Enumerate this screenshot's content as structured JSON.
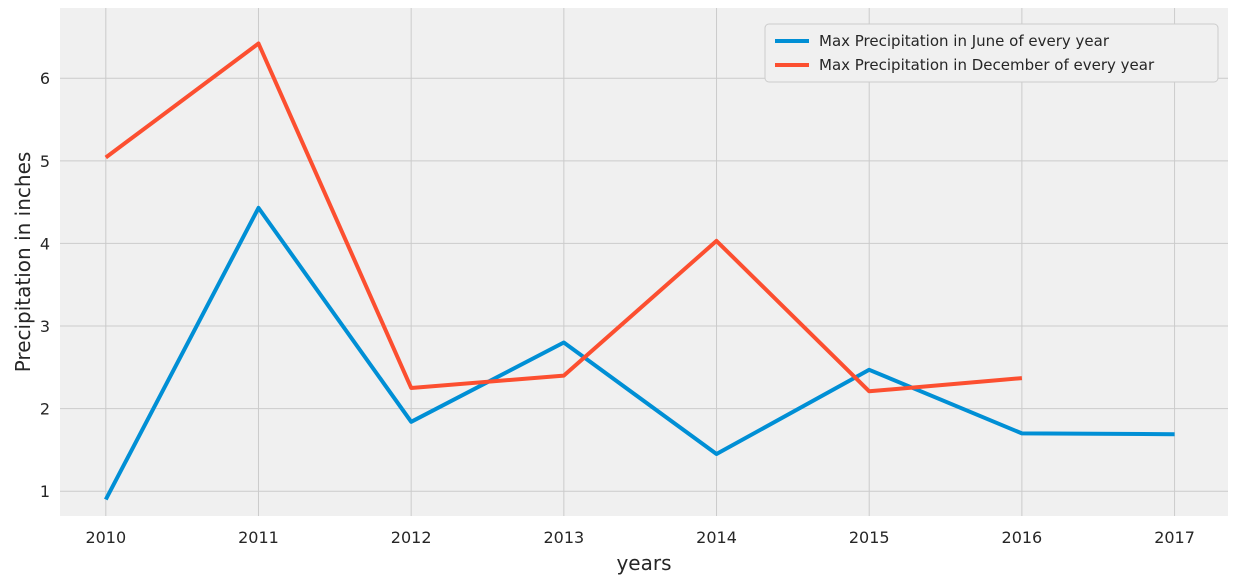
{
  "chart_data": {
    "type": "line",
    "title": "",
    "xlabel": "years",
    "ylabel": "Precipitation in inches",
    "x": [
      2010,
      2011,
      2012,
      2013,
      2014,
      2015,
      2016,
      2017
    ],
    "xlim": [
      2009.7,
      2017.35
    ],
    "ylim": [
      0.7,
      6.85
    ],
    "xticks": [
      "2010",
      "2011",
      "2012",
      "2013",
      "2014",
      "2015",
      "2016",
      "2017"
    ],
    "yticks": [
      "1",
      "2",
      "3",
      "4",
      "5",
      "6"
    ],
    "grid": true,
    "legend_position": "top-right",
    "series": [
      {
        "name": "Max Precipitation in June of every year",
        "color": "#008fd5",
        "x": [
          2010,
          2011,
          2012,
          2013,
          2014,
          2015,
          2016,
          2017
        ],
        "values": [
          0.9,
          4.43,
          1.84,
          2.8,
          1.45,
          2.47,
          1.7,
          1.69
        ]
      },
      {
        "name": "Max Precipitation in December of every year",
        "color": "#fc4f30",
        "x": [
          2010,
          2011,
          2012,
          2013,
          2014,
          2015,
          2016
        ],
        "values": [
          5.04,
          6.42,
          2.25,
          2.4,
          4.03,
          2.21,
          2.37
        ]
      }
    ]
  }
}
